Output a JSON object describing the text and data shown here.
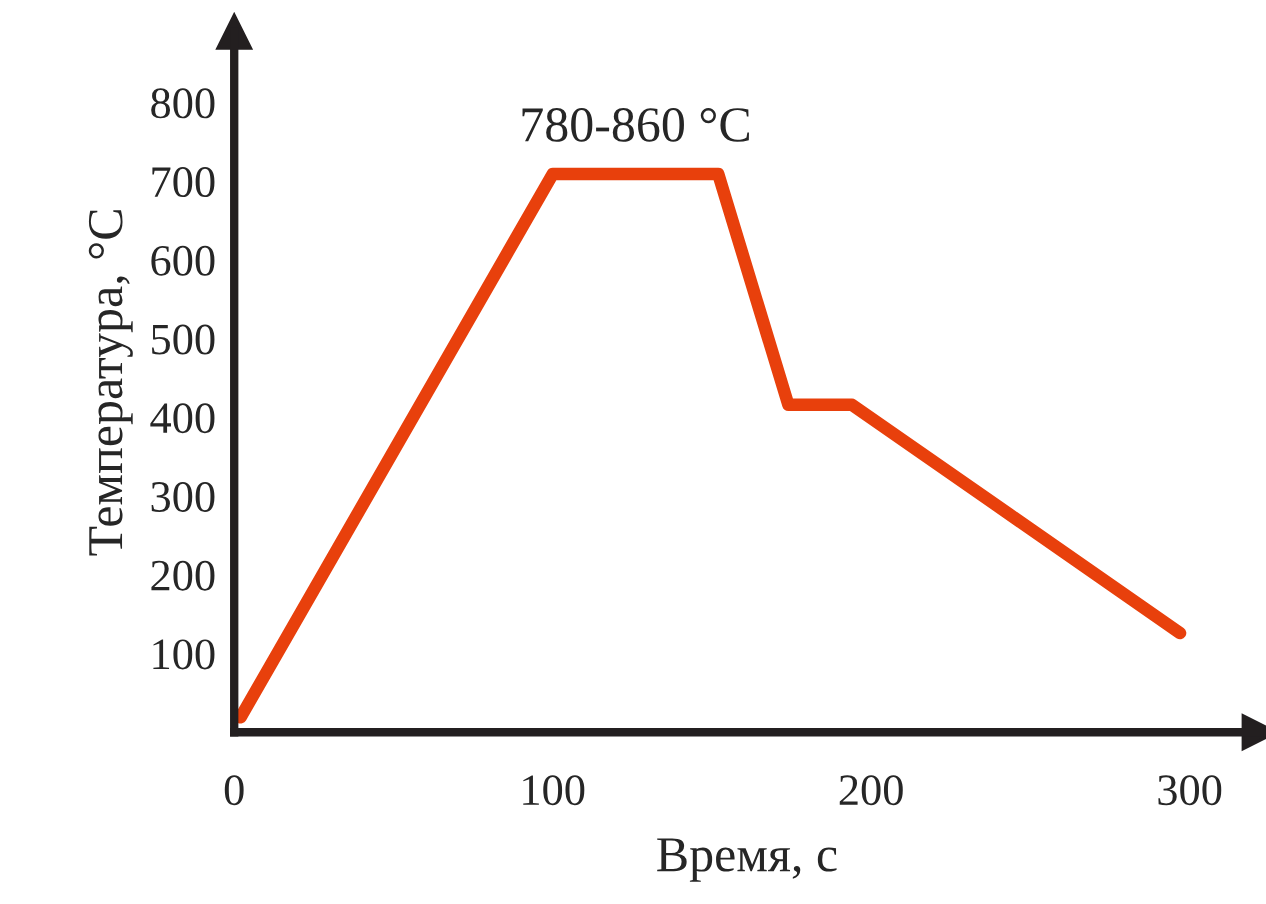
{
  "chart_data": {
    "type": "line",
    "xlabel": "Время, с",
    "ylabel": "Температура, °C",
    "annotations": [
      {
        "text": "780-860 °C",
        "x": 126,
        "y": 709
      }
    ],
    "x": [
      2,
      100,
      152,
      174,
      194,
      297
    ],
    "series": [
      {
        "color": "#e8400c",
        "values": [
          19,
          709,
          709,
          416,
          416,
          126
        ]
      }
    ],
    "xlim": [
      0,
      322
    ],
    "ylim": [
      0,
      890
    ],
    "xticks": [
      0,
      100,
      200,
      300
    ],
    "yticks": [
      100,
      200,
      300,
      400,
      500,
      600,
      700,
      800
    ],
    "grid": false,
    "legend": false,
    "marker": "none",
    "line_style": "solid"
  }
}
